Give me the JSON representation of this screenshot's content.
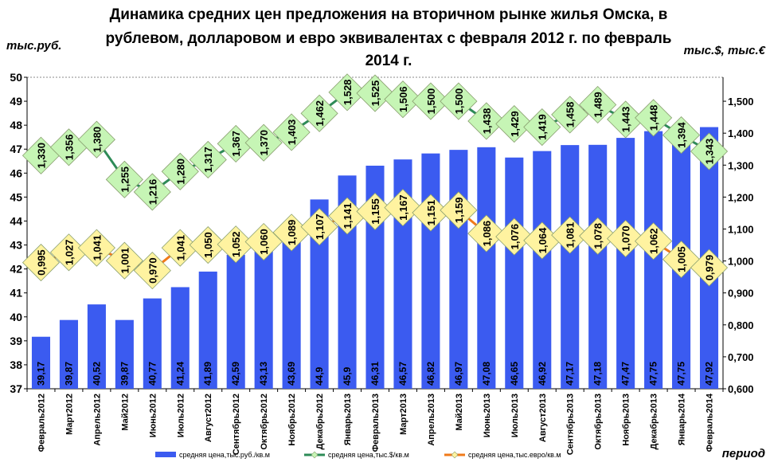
{
  "chart_data": {
    "type": "bar",
    "title_lines": [
      "Динамика  средних цен предложения на вторичном рынке жилья Омска, в",
      "рублевом, долларовом и евро эквивалентах с февраля 2012 г. по февраль",
      "2014 г."
    ],
    "left_unit": "тыс.руб.",
    "right_unit": "тыс.$, тыс.€",
    "xlabel": "период",
    "ylim_left": [
      37,
      50
    ],
    "left_ticks": [
      "37",
      "38",
      "39",
      "40",
      "41",
      "42",
      "43",
      "44",
      "45",
      "46",
      "47",
      "48",
      "49",
      "50"
    ],
    "ylim_right": [
      0.6,
      1.575
    ],
    "right_ticks": [
      "0,600",
      "0,700",
      "0,800",
      "0,900",
      "1,000",
      "1,100",
      "1,200",
      "1,300",
      "1,400",
      "1,500"
    ],
    "categories": [
      "Февраль2012",
      "Март2012",
      "Апрель2012",
      "Май2012",
      "Июнь2012",
      "Июль2012",
      "Август2012",
      "Сентябрь2012",
      "Октябрь2012",
      "Ноябрь2012",
      "Декабрь2012",
      "Январь2013",
      "Февраль2013",
      "Март2013",
      "Апрель2013",
      "Май2013",
      "Июнь2013",
      "Июль2013",
      "Август2013",
      "Сентябрь2013",
      "Октябрь2013",
      "Ноябрь2013",
      "Декабрь2013",
      "Январь2014",
      "Февраль2014"
    ],
    "series": [
      {
        "name": "средняя цена,тыс.руб./кв.м",
        "axis": "left",
        "kind": "bar",
        "color": "#3b5bf0",
        "values": [
          39.17,
          39.87,
          40.52,
          39.87,
          40.77,
          41.24,
          41.89,
          42.59,
          43.13,
          43.69,
          44.9,
          45.9,
          46.31,
          46.57,
          46.82,
          46.97,
          47.08,
          46.65,
          46.92,
          47.17,
          47.18,
          47.47,
          47.75,
          47.75,
          47.92
        ],
        "labels": [
          "39,17",
          "39,87",
          "40,52",
          "39,87",
          "40,77",
          "41,24",
          "41,89",
          "42,59",
          "43,13",
          "43,69",
          "44,9",
          "45,9",
          "46,31",
          "46,57",
          "46,82",
          "46,97",
          "47,08",
          "46,65",
          "46,92",
          "47,17",
          "47,18",
          "47,47",
          "47,75",
          "47,75",
          "47,92"
        ]
      },
      {
        "name": "средняя цена,тыс.$/кв.м",
        "axis": "right",
        "kind": "line",
        "color": "#2e8b57",
        "marker_fill": "#c6f5b5",
        "values": [
          1.33,
          1.356,
          1.38,
          1.255,
          1.216,
          1.28,
          1.317,
          1.367,
          1.37,
          1.403,
          1.462,
          1.528,
          1.525,
          1.506,
          1.5,
          1.5,
          1.438,
          1.429,
          1.419,
          1.458,
          1.489,
          1.443,
          1.448,
          1.394,
          1.343
        ],
        "labels": [
          "1,330",
          "1,356",
          "1,380",
          "1,255",
          "1,216",
          "1,280",
          "1,317",
          "1,367",
          "1,370",
          "1,403",
          "1,462",
          "1,528",
          "1,525",
          "1,506",
          "1,500",
          "1,500",
          "1,438",
          "1,429",
          "1,419",
          "1,458",
          "1,489",
          "1,443",
          "1,448",
          "1,394",
          "1,343"
        ]
      },
      {
        "name": "средняя цена,тыс.евро/кв.м",
        "axis": "right",
        "kind": "line",
        "color": "#f07a1a",
        "marker_fill": "#fff3a0",
        "values": [
          0.995,
          1.027,
          1.041,
          1.001,
          0.97,
          1.041,
          1.05,
          1.052,
          1.06,
          1.089,
          1.107,
          1.141,
          1.155,
          1.167,
          1.151,
          1.159,
          1.086,
          1.076,
          1.064,
          1.081,
          1.078,
          1.07,
          1.062,
          1.005,
          0.979
        ],
        "labels": [
          "0,995",
          "1,027",
          "1,041",
          "1,001",
          "0,970",
          "1,041",
          "1,050",
          "1,052",
          "1,060",
          "1,089",
          "1,107",
          "1,141",
          "1,155",
          "1,167",
          "1,151",
          "1,159",
          "1,086",
          "1,076",
          "1,064",
          "1,081",
          "1,078",
          "1,070",
          "1,062",
          "1,005",
          "0,979"
        ]
      }
    ]
  }
}
